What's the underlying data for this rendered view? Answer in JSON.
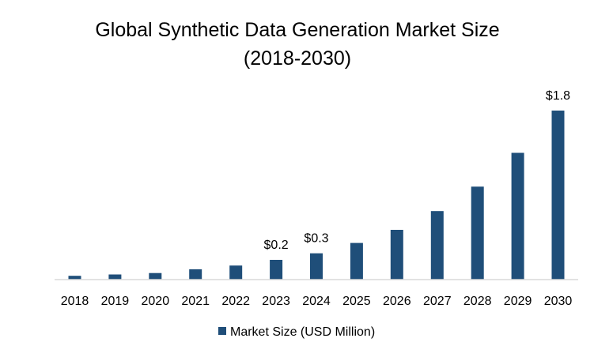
{
  "chart_data": {
    "type": "bar",
    "title_line1": "Global Synthetic Data Generation Market Size",
    "title_line2": "(2018-2030)",
    "categories": [
      "2018",
      "2019",
      "2020",
      "2021",
      "2022",
      "2023",
      "2024",
      "2025",
      "2026",
      "2027",
      "2028",
      "2029",
      "2030"
    ],
    "series": [
      {
        "name": "Market Size (USD Million)",
        "color": "#1f4e79",
        "values": [
          0.04,
          0.055,
          0.07,
          0.11,
          0.15,
          0.21,
          0.28,
          0.39,
          0.53,
          0.73,
          0.99,
          1.35,
          1.8
        ]
      }
    ],
    "data_labels": [
      {
        "category": "2023",
        "text": "$0.2"
      },
      {
        "category": "2024",
        "text": "$0.3"
      },
      {
        "category": "2030",
        "text": "$1.8"
      }
    ],
    "xlabel": "",
    "ylabel": "",
    "ylim": [
      0,
      1.8
    ],
    "grid": false,
    "legend_position": "bottom"
  }
}
